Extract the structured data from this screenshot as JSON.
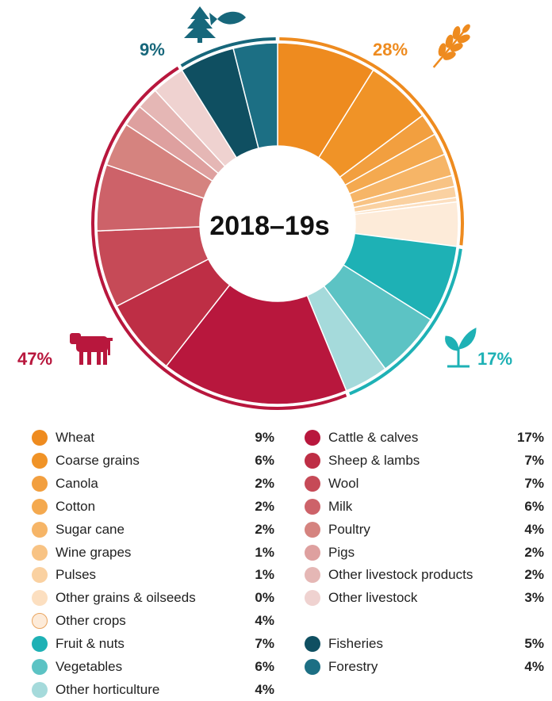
{
  "chart_data": {
    "type": "pie",
    "title": "2018–19s",
    "groups": [
      {
        "name": "Crops",
        "label": "28%",
        "color": "#EE8B1F",
        "icon": "wheat-icon"
      },
      {
        "name": "Horticulture",
        "label": "17%",
        "color": "#1EB1B5",
        "icon": "seedling-icon"
      },
      {
        "name": "Livestock",
        "label": "47%",
        "color": "#B8173D",
        "icon": "cow-icon"
      },
      {
        "name": "Forestry & fisheries",
        "label": "9%",
        "color": "#17677B",
        "icon": "tree-fish-icon"
      }
    ],
    "slices": [
      {
        "name": "Wheat",
        "value": 9,
        "label": "9%",
        "color": "#EE8B1F",
        "group": 0
      },
      {
        "name": "Coarse grains",
        "value": 6,
        "label": "6%",
        "color": "#F09327",
        "group": 0
      },
      {
        "name": "Canola",
        "value": 2,
        "label": "2%",
        "color": "#F29F3F",
        "group": 0
      },
      {
        "name": "Cotton",
        "value": 2,
        "label": "2%",
        "color": "#F4A94F",
        "group": 0
      },
      {
        "name": "Sugar cane",
        "value": 2,
        "label": "2%",
        "color": "#F6B567",
        "group": 0
      },
      {
        "name": "Wine grapes",
        "value": 1,
        "label": "1%",
        "color": "#F8C384",
        "group": 0
      },
      {
        "name": "Pulses",
        "value": 1,
        "label": "1%",
        "color": "#FAD1A1",
        "group": 0
      },
      {
        "name": "Other grains & oilseeds",
        "value": 0.4,
        "label": "0%",
        "color": "#FCDFC0",
        "group": 0
      },
      {
        "name": "Other crops",
        "value": 4,
        "label": "4%",
        "color": "#FDEBD9",
        "group": 0
      },
      {
        "name": "Fruit & nuts",
        "value": 7,
        "label": "7%",
        "color": "#1EB1B5",
        "group": 1
      },
      {
        "name": "Vegetables",
        "value": 6,
        "label": "6%",
        "color": "#5CC3C4",
        "group": 1
      },
      {
        "name": "Other horticulture",
        "value": 4,
        "label": "4%",
        "color": "#A5DADB",
        "group": 1
      },
      {
        "name": "Cattle & calves",
        "value": 17,
        "label": "17%",
        "color": "#B8173D",
        "group": 2
      },
      {
        "name": "Sheep & lambs",
        "value": 7,
        "label": "7%",
        "color": "#BE2E45",
        "group": 2
      },
      {
        "name": "Wool",
        "value": 7,
        "label": "7%",
        "color": "#C64A57",
        "group": 2
      },
      {
        "name": "Milk",
        "value": 6,
        "label": "6%",
        "color": "#CD6269",
        "group": 2
      },
      {
        "name": "Poultry",
        "value": 4,
        "label": "4%",
        "color": "#D5837F",
        "group": 2
      },
      {
        "name": "Pigs",
        "value": 2,
        "label": "2%",
        "color": "#DEA09F",
        "group": 2
      },
      {
        "name": "Other livestock products",
        "value": 2,
        "label": "2%",
        "color": "#E5B7B5",
        "group": 2
      },
      {
        "name": "Other livestock",
        "value": 3,
        "label": "3%",
        "color": "#EFD2D0",
        "group": 2
      },
      {
        "name": "Fisheries",
        "value": 5,
        "label": "5%",
        "color": "#0F4F61",
        "group": 3
      },
      {
        "name": "Forestry",
        "value": 4,
        "label": "4%",
        "color": "#1C6F84",
        "group": 3
      }
    ]
  }
}
